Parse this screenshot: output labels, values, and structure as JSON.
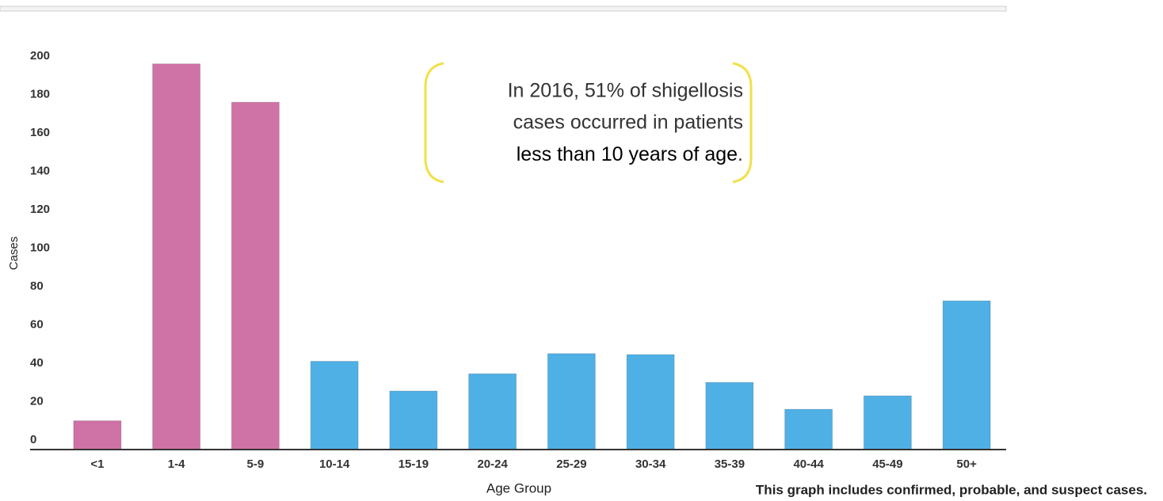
{
  "chart_data": {
    "type": "bar",
    "categories": [
      "<1",
      "1-4",
      "5-9",
      "10-14",
      "15-19",
      "20-24",
      "25-29",
      "30-34",
      "35-39",
      "40-44",
      "45-49",
      "50+"
    ],
    "values": [
      15,
      201,
      181,
      46,
      30.5,
      39.5,
      50,
      49.5,
      35,
      21,
      28,
      77.5
    ],
    "colors": [
      "#cf72a6",
      "#cf72a6",
      "#cf72a6",
      "#4fb0e6",
      "#4fb0e6",
      "#4fb0e6",
      "#4fb0e6",
      "#4fb0e6",
      "#4fb0e6",
      "#4fb0e6",
      "#4fb0e6",
      "#4fb0e6"
    ],
    "ylim": [
      0,
      205
    ],
    "yticks": [
      0,
      20,
      40,
      60,
      80,
      100,
      120,
      140,
      160,
      180,
      200
    ],
    "xlabel": "Age Group",
    "ylabel": "Cases",
    "annotation": [
      "In 2016, 51% of shigellosis",
      "cases occurred in patients"
    ],
    "annotation_emphasis": "less than 10 years of age",
    "annotation_end": ".",
    "footnote": "This graph includes confirmed, probable, and suspect cases."
  }
}
